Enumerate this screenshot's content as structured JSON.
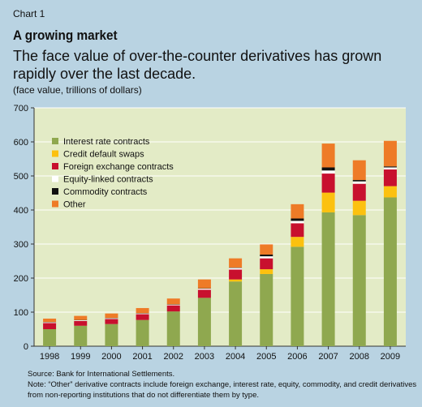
{
  "header": {
    "label": "Chart 1",
    "title": "A growing market",
    "subtitle": "The face value of over-the-counter derivatives has grown rapidly over the last decade.",
    "unit": "(face value, trillions of dollars)"
  },
  "chart_data": {
    "type": "bar",
    "stacked": true,
    "categories": [
      "1998",
      "1999",
      "2000",
      "2001",
      "2002",
      "2003",
      "2004",
      "2005",
      "2006",
      "2007",
      "2008",
      "2009"
    ],
    "ylim": [
      0,
      700
    ],
    "yticks": [
      0,
      100,
      200,
      300,
      400,
      500,
      600,
      700
    ],
    "legend_position": "top-left",
    "series": [
      {
        "name": "Interest rate contracts",
        "color": "#8fa84f",
        "values": [
          50,
          60,
          65,
          77,
          102,
          142,
          190,
          212,
          292,
          393,
          385,
          437
        ]
      },
      {
        "name": "Credit default swaps",
        "color": "#fcc10f",
        "values": [
          0,
          0,
          0,
          0,
          0,
          0,
          6,
          14,
          29,
          58,
          42,
          33
        ]
      },
      {
        "name": "Foreign exchange contracts",
        "color": "#c8102e",
        "values": [
          18,
          14,
          15,
          17,
          18,
          24,
          29,
          32,
          40,
          56,
          50,
          49
        ]
      },
      {
        "name": "Equity-linked contracts",
        "color": "#ffffff",
        "values": [
          2,
          2,
          2,
          2,
          2,
          3,
          5,
          6,
          7,
          9,
          7,
          6
        ]
      },
      {
        "name": "Commodity contracts",
        "color": "#111111",
        "values": [
          1,
          1,
          1,
          1,
          1,
          1,
          1,
          5,
          7,
          9,
          4,
          3
        ]
      },
      {
        "name": "Other",
        "color": "#ee7b27",
        "values": [
          10,
          12,
          13,
          15,
          17,
          26,
          27,
          30,
          42,
          70,
          58,
          75
        ]
      }
    ]
  },
  "footer": {
    "source": "Source: Bank for International Settlements.",
    "note": "Note: “Other” derivative contracts include foreign exchange, interest rate, equity, commodity, and credit derivatives from non-reporting institutions that do not differentiate them by type."
  }
}
